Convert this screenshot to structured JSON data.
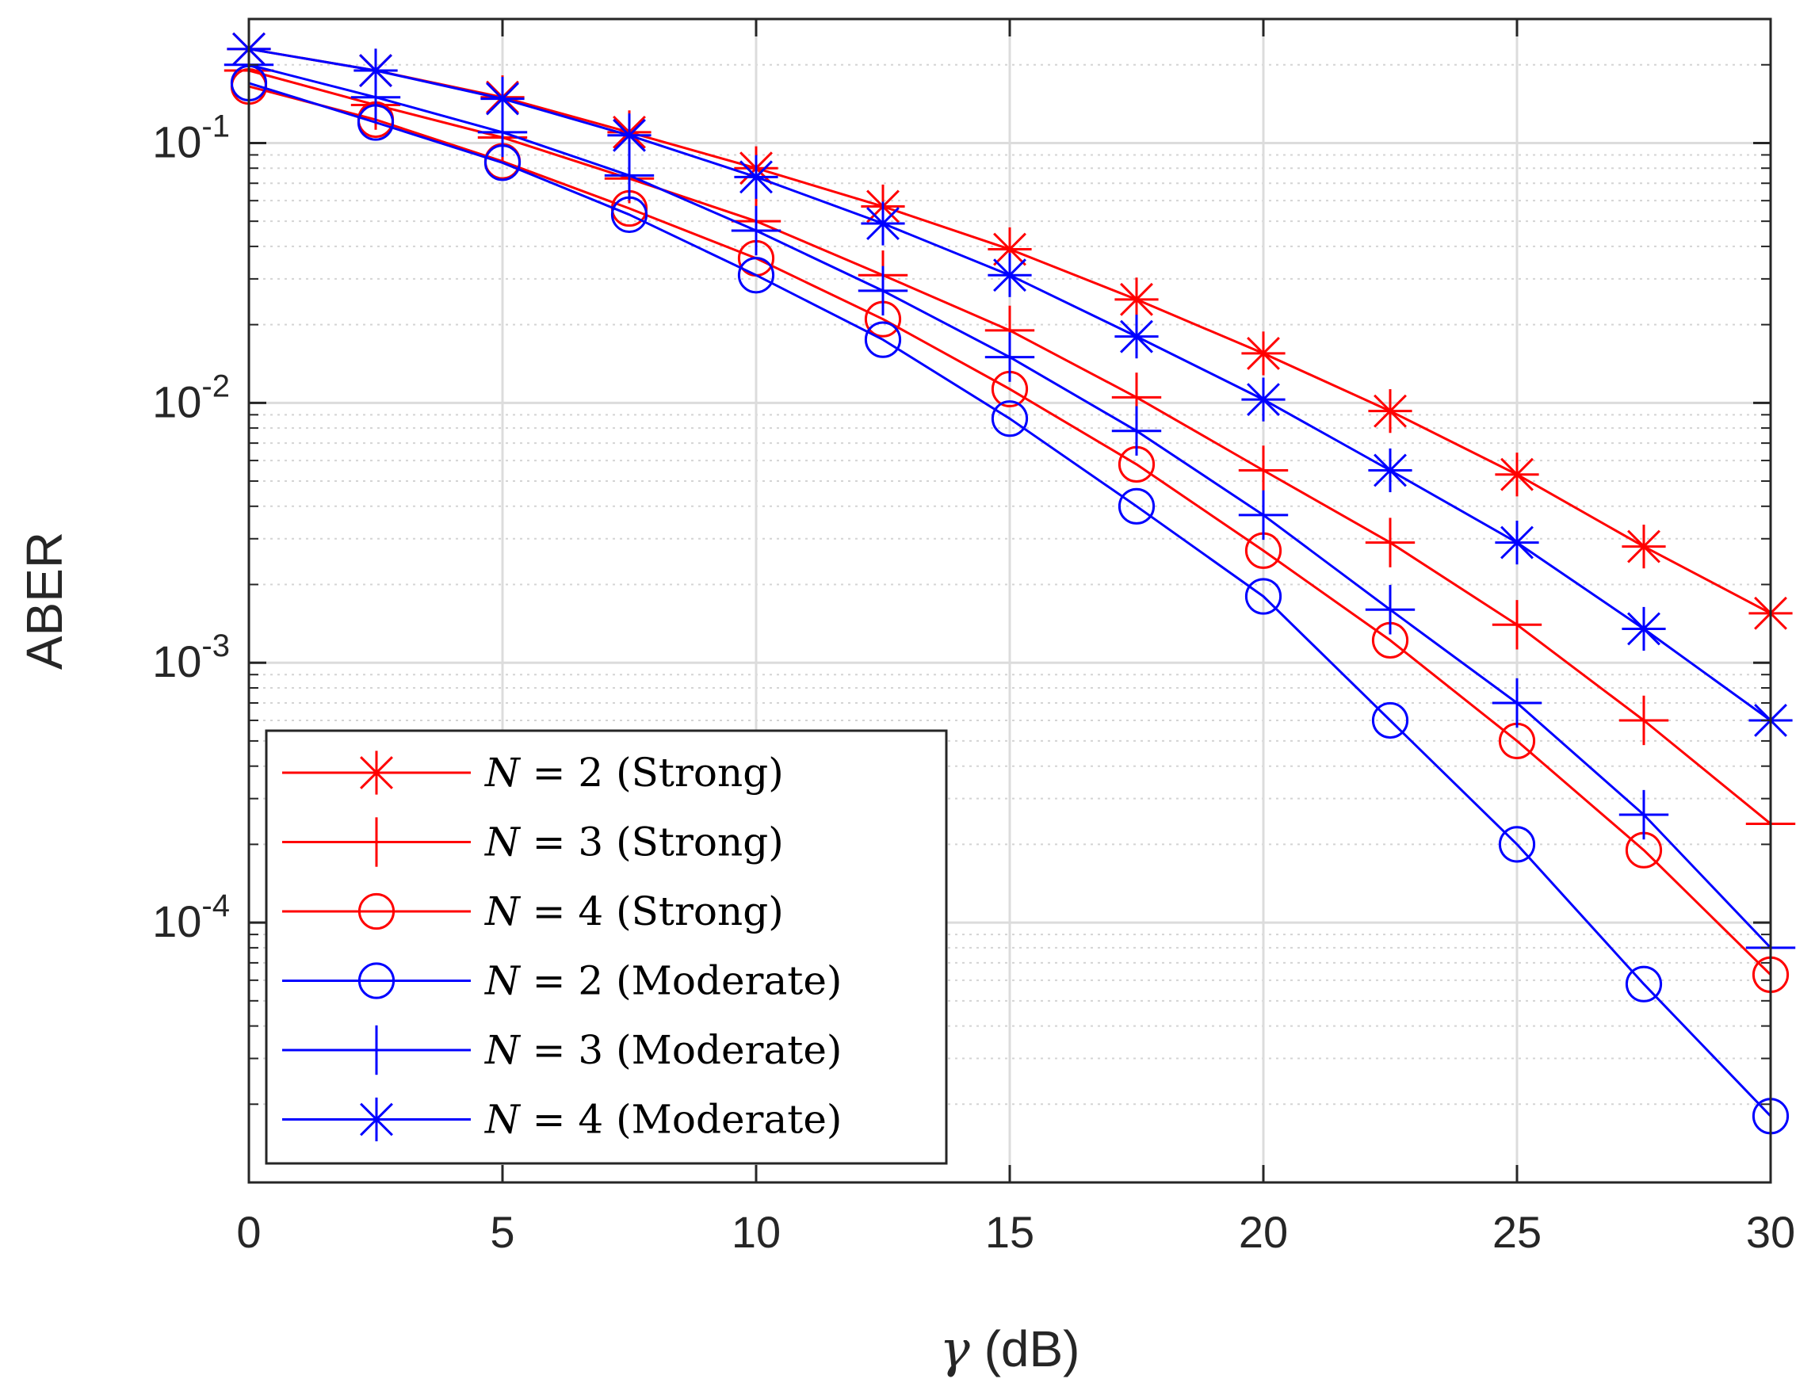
{
  "chart_data": {
    "type": "line",
    "xlabel": "(dB)",
    "xlabel_symbol": "γ",
    "ylabel": "ABER",
    "yscale": "log",
    "xlim": [
      0,
      30
    ],
    "ylim": [
      1e-05,
      0.3
    ],
    "grid": true,
    "legend_position": "bottom-left",
    "x": [
      0,
      2.5,
      5,
      7.5,
      10,
      12.5,
      15,
      17.5,
      20,
      22.5,
      25,
      27.5,
      30
    ],
    "x_ticks": [
      0,
      5,
      10,
      15,
      20,
      25,
      30
    ],
    "x_tick_labels": [
      "0",
      "5",
      "10",
      "15",
      "20",
      "25",
      "30"
    ],
    "y_ticks": [
      {
        "value": 0.1,
        "base": "10",
        "exp": "-1"
      },
      {
        "value": 0.01,
        "base": "10",
        "exp": "-2"
      },
      {
        "value": 0.001,
        "base": "10",
        "exp": "-3"
      },
      {
        "value": 0.0001,
        "base": "10",
        "exp": "-4"
      }
    ],
    "series": [
      {
        "name": "N = 2 (Strong)",
        "var": "N",
        "eq": " = 2",
        "label": " (Strong)",
        "color": "#ff0000",
        "marker": "asterisk",
        "values": [
          0.23,
          0.19,
          0.15,
          0.11,
          0.08,
          0.057,
          0.039,
          0.025,
          0.0155,
          0.0093,
          0.0053,
          0.0028,
          0.00155
        ]
      },
      {
        "name": "N = 3 (Strong)",
        "var": "N",
        "eq": " = 3",
        "label": " (Strong)",
        "color": "#ff0000",
        "marker": "plus",
        "values": [
          0.19,
          0.14,
          0.105,
          0.073,
          0.05,
          0.031,
          0.019,
          0.0105,
          0.0055,
          0.0029,
          0.0014,
          0.0006,
          0.00024
        ]
      },
      {
        "name": "N = 4 (Strong)",
        "var": "N",
        "eq": " = 4",
        "label": " (Strong)",
        "color": "#ff0000",
        "marker": "circle",
        "values": [
          0.165,
          0.123,
          0.085,
          0.056,
          0.036,
          0.021,
          0.0113,
          0.0058,
          0.0027,
          0.00122,
          0.0005,
          0.00019,
          6.3e-05
        ]
      },
      {
        "name": "N = 2 (Moderate)",
        "var": "N",
        "eq": " = 2",
        "label": " (Moderate)",
        "color": "#0000ff",
        "marker": "circle",
        "values": [
          0.17,
          0.12,
          0.084,
          0.053,
          0.031,
          0.0175,
          0.0087,
          0.004,
          0.0018,
          0.0006,
          0.0002,
          5.8e-05,
          1.8e-05
        ]
      },
      {
        "name": "N = 3 (Moderate)",
        "var": "N",
        "eq": " = 3",
        "label": " (Moderate)",
        "color": "#0000ff",
        "marker": "plus",
        "values": [
          0.2,
          0.15,
          0.11,
          0.075,
          0.046,
          0.027,
          0.015,
          0.0078,
          0.0037,
          0.0016,
          0.0007,
          0.00026,
          8e-05
        ]
      },
      {
        "name": "N = 4 (Moderate)",
        "var": "N",
        "eq": " = 4",
        "label": " (Moderate)",
        "color": "#0000ff",
        "marker": "asterisk",
        "values": [
          0.23,
          0.19,
          0.148,
          0.107,
          0.074,
          0.049,
          0.031,
          0.018,
          0.0103,
          0.0055,
          0.0029,
          0.00135,
          0.0006
        ]
      }
    ]
  }
}
